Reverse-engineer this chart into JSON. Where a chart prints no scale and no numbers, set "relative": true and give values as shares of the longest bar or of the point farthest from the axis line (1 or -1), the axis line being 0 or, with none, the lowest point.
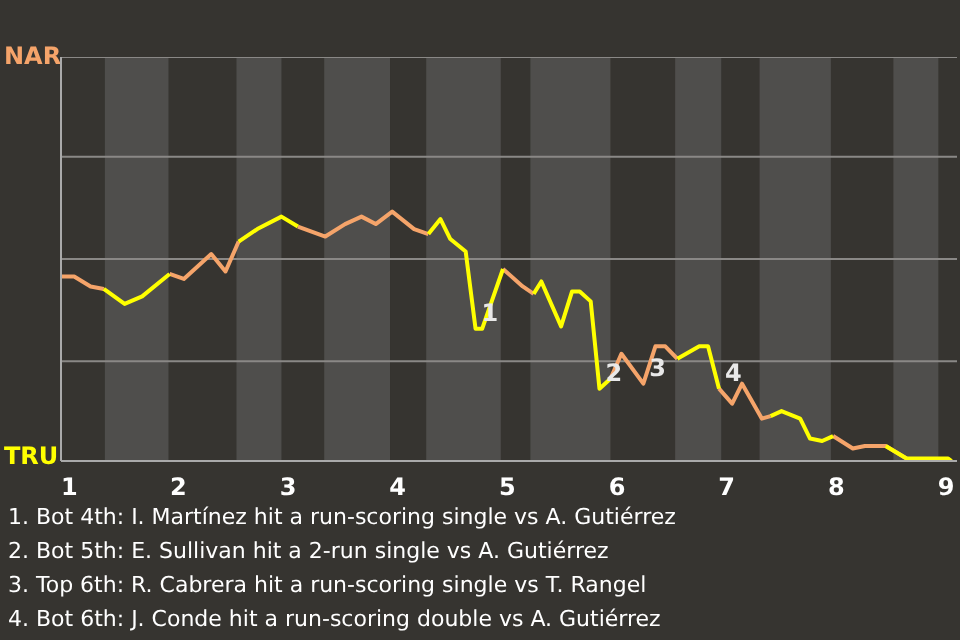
{
  "chart_data": {
    "type": "line",
    "relative": true,
    "x": [
      0.93,
      1.05,
      1.2,
      1.32,
      1.51,
      1.67,
      1.92,
      2.05,
      2.3,
      2.43,
      2.55,
      2.72,
      2.94,
      3.09,
      3.34,
      3.52,
      3.67,
      3.8,
      3.95,
      4.15,
      4.28,
      4.39,
      4.48,
      4.62,
      4.71,
      4.77,
      4.96,
      5.14,
      5.24,
      5.31,
      5.49,
      5.59,
      5.66,
      5.76,
      5.84,
      5.94,
      6.04,
      6.24,
      6.35,
      6.44,
      6.55,
      6.75,
      6.83,
      6.93,
      7.05,
      7.14,
      7.32,
      7.4,
      7.5,
      7.67,
      7.76,
      7.87,
      7.97,
      8.15,
      8.26,
      8.45,
      8.64,
      9.02,
      9.05
    ],
    "series": [
      {
        "color": "#f5a46a",
        "values": [
          0.74,
          0.74,
          0.7,
          0.69,
          null,
          null,
          0.75,
          0.73,
          0.83,
          0.76,
          0.88,
          null,
          null,
          0.94,
          0.9,
          0.95,
          0.98,
          0.95,
          1,
          0.93,
          0.91,
          null,
          null,
          null,
          null,
          null,
          0.77,
          0.7,
          0.67,
          null,
          null,
          null,
          null,
          null,
          null,
          0.33,
          0.43,
          0.31,
          0.46,
          0.46,
          0.41,
          null,
          null,
          0.29,
          0.23,
          0.31,
          0.17,
          0.18,
          null,
          null,
          null,
          null,
          0.1,
          0.05,
          0.06,
          0.06,
          0.01,
          null,
          null
        ]
      },
      {
        "color": "#ffff00",
        "values": [
          null,
          null,
          null,
          0.69,
          0.63,
          0.66,
          0.75,
          null,
          null,
          null,
          0.88,
          0.93,
          0.98,
          0.94,
          null,
          null,
          null,
          null,
          null,
          null,
          0.91,
          0.97,
          0.89,
          0.84,
          0.53,
          0.53,
          0.77,
          null,
          0.67,
          0.72,
          0.54,
          0.68,
          0.68,
          0.64,
          0.29,
          0.33,
          null,
          null,
          null,
          null,
          0.41,
          0.46,
          0.46,
          0.29,
          null,
          null,
          null,
          0.18,
          0.2,
          0.17,
          0.09,
          0.08,
          0.1,
          null,
          null,
          0.06,
          0.01,
          0.01,
          0
        ]
      }
    ],
    "xlim": [
      0.93,
      9.1
    ],
    "xticks": [
      1,
      2,
      3,
      4,
      5,
      6,
      7,
      8,
      9
    ],
    "ref_lines": [
      {
        "axis": "y",
        "value": 0.4,
        "color": "#8a8886"
      },
      {
        "axis": "y",
        "value": 0.81,
        "color": "#8a8886"
      },
      {
        "axis": "y",
        "value": 1.22,
        "color": "#8a8886"
      },
      {
        "axis": "y",
        "value": 1.62,
        "color": "#8a8886"
      }
    ],
    "bands": [
      {
        "axis": "x",
        "from": 1.33,
        "to": 1.91,
        "color": "#4f4e4c"
      },
      {
        "axis": "x",
        "from": 2.53,
        "to": 2.94,
        "color": "#4f4e4c"
      },
      {
        "axis": "x",
        "from": 3.33,
        "to": 3.93,
        "color": "#4f4e4c"
      },
      {
        "axis": "x",
        "from": 4.26,
        "to": 4.94,
        "color": "#4f4e4c"
      },
      {
        "axis": "x",
        "from": 5.21,
        "to": 5.94,
        "color": "#4f4e4c"
      },
      {
        "axis": "x",
        "from": 6.53,
        "to": 6.95,
        "color": "#4f4e4c"
      },
      {
        "axis": "x",
        "from": 7.3,
        "to": 7.95,
        "color": "#4f4e4c"
      },
      {
        "axis": "x",
        "from": 8.52,
        "to": 8.93,
        "color": "#4f4e4c"
      }
    ],
    "annotations": [
      "NAR",
      "TRU",
      {
        "text": "1",
        "x": 4.71,
        "y": 0.53
      },
      {
        "text": "2",
        "x": 5.84,
        "y": 0.29
      },
      {
        "text": "3",
        "x": 6.24,
        "y": 0.31
      },
      {
        "text": "4",
        "x": 6.93,
        "y": 0.29
      },
      "1. Bot 4th: I. Martínez hit a run-scoring single vs A. Gutiérrez",
      "2. Bot 5th: E. Sullivan hit a 2-run single vs A. Gutiérrez",
      "3. Top 6th: R. Cabrera hit a run-scoring single vs T. Rangel",
      "4. Bot 6th: J. Conde hit a run-scoring double vs A. Gutiérrez"
    ]
  }
}
